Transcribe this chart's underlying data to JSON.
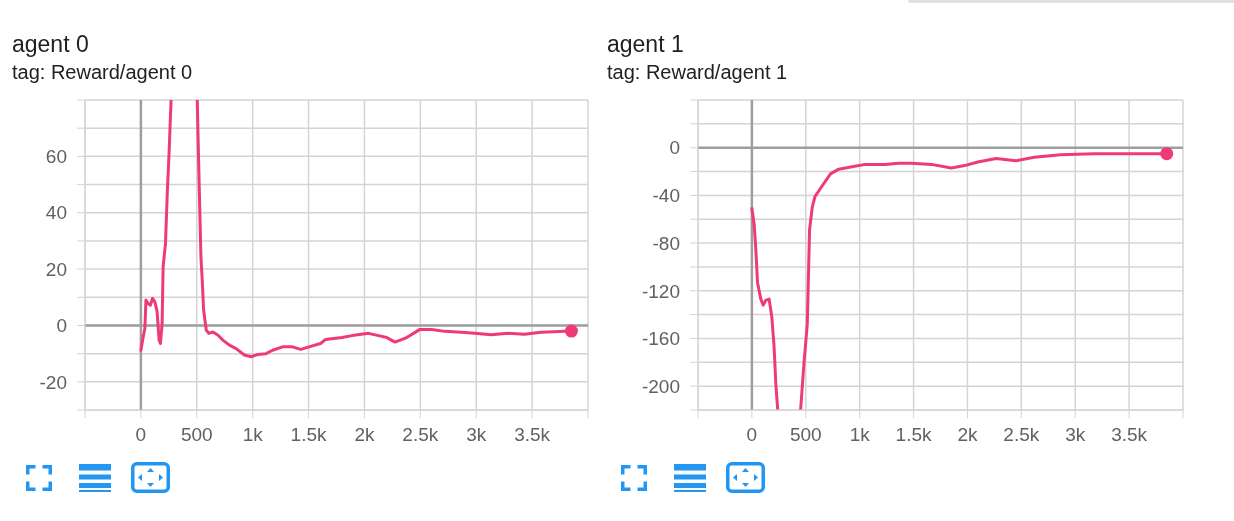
{
  "chart_data": [
    {
      "type": "line",
      "title": "agent 0",
      "subtitle": "tag: Reward/agent 0",
      "series": [
        {
          "type": "line",
          "color": "#ef3a79",
          "x": [
            0,
            21,
            36,
            45,
            65,
            86,
            104,
            125,
            145,
            163,
            175,
            190,
            199,
            220,
            237,
            252,
            270,
            390,
            504,
            519,
            537,
            549,
            561,
            585,
            608,
            644,
            688,
            733,
            792,
            852,
            926,
            985,
            1045,
            1119,
            1178,
            1267,
            1356,
            1430,
            1504,
            1607,
            1651,
            1800,
            1889,
            2037,
            2126,
            2200,
            2274,
            2378,
            2497,
            2600,
            2719,
            2867,
            2986,
            3134,
            3282,
            3431,
            3579,
            3852
          ],
          "values": [
            -8.8,
            -4,
            -1,
            9,
            7.8,
            7.2,
            9.6,
            8.4,
            4.9,
            -5.2,
            -6.4,
            0.7,
            20.9,
            29,
            48,
            61,
            80,
            null,
            80,
            54,
            24.4,
            16,
            5.5,
            -1.7,
            -2.8,
            -2.3,
            -3.4,
            -5.2,
            -7,
            -8.2,
            -10.5,
            -11.1,
            -10.3,
            -10,
            -8.8,
            -7.6,
            -7.6,
            -8.5,
            -7.6,
            -6.4,
            -5,
            -4.3,
            -3.6,
            -2.8,
            -3.6,
            -4.3,
            -5.9,
            -4.3,
            -1.4,
            -1.4,
            -2.1,
            -2.4,
            -2.8,
            -3.3,
            -2.8,
            -3.1,
            -2.4,
            -2
          ]
        },
        {
          "type": "scatter",
          "color": "#ef3a79",
          "x": [
            3852
          ],
          "values": [
            -2
          ]
        }
      ],
      "xlim": [
        -500,
        4000
      ],
      "ylim": [
        -30,
        80
      ],
      "xticks": [
        {
          "value": -500,
          "label": null
        },
        {
          "value": 0,
          "label": "0"
        },
        500,
        {
          "value": 1000,
          "label": "1k"
        },
        {
          "value": 1500,
          "label": "1.5k"
        },
        {
          "value": 2000,
          "label": "2k"
        },
        {
          "value": 2500,
          "label": "2.5k"
        },
        {
          "value": 3000,
          "label": "3k"
        },
        {
          "value": 3500,
          "label": "3.5k"
        },
        {
          "value": 4000,
          "label": null
        }
      ],
      "yticks": [
        {
          "value": -30,
          "label": null
        },
        -20,
        {
          "value": -10,
          "label": null
        },
        {
          "value": 0,
          "label": "0"
        },
        {
          "value": 10,
          "label": null
        },
        20,
        {
          "value": 30,
          "label": null
        },
        40,
        {
          "value": 50,
          "label": null
        },
        60,
        {
          "value": 70,
          "label": null
        },
        {
          "value": 80,
          "label": null
        }
      ],
      "grid": true
    },
    {
      "type": "line",
      "title": "agent 1",
      "subtitle": "tag: Reward/agent 1",
      "series": [
        {
          "type": "line",
          "color": "#ef3a79",
          "x": [
            0,
            21,
            37,
            52,
            83,
            105,
            129,
            160,
            185,
            206,
            222,
            240,
            345,
            452,
            483,
            514,
            535,
            560,
            585,
            637,
            729,
            806,
            929,
            1052,
            1237,
            1360,
            1482,
            1666,
            1850,
            1973,
            2096,
            2265,
            2450,
            2619,
            2865,
            3173,
            3480,
            3849
          ],
          "values": [
            -51,
            -64,
            -86,
            -113,
            -127,
            -132,
            -128,
            -127,
            -142,
            -167,
            -198,
            -220,
            null,
            -220,
            -181,
            -148,
            -69,
            -50,
            -41,
            -34,
            -22,
            -18,
            -16,
            -14,
            -14,
            -13,
            -13,
            -14,
            -17,
            -15,
            -12,
            -9,
            -11,
            -8,
            -6,
            -5,
            -5,
            -5
          ]
        },
        {
          "type": "scatter",
          "color": "#ef3a79",
          "x": [
            3849
          ],
          "values": [
            -5
          ]
        }
      ],
      "xlim": [
        -500,
        4000
      ],
      "ylim": [
        -220,
        40
      ],
      "xticks": [
        {
          "value": -500,
          "label": null
        },
        {
          "value": 0,
          "label": "0"
        },
        500,
        {
          "value": 1000,
          "label": "1k"
        },
        {
          "value": 1500,
          "label": "1.5k"
        },
        {
          "value": 2000,
          "label": "2k"
        },
        {
          "value": 2500,
          "label": "2.5k"
        },
        {
          "value": 3000,
          "label": "3k"
        },
        {
          "value": 3500,
          "label": "3.5k"
        },
        {
          "value": 4000,
          "label": null
        }
      ],
      "yticks": [
        {
          "value": -220,
          "label": null
        },
        -200,
        {
          "value": -180,
          "label": null
        },
        -160,
        {
          "value": -140,
          "label": null
        },
        -120,
        {
          "value": -100,
          "label": null
        },
        -80,
        {
          "value": -60,
          "label": null
        },
        -40,
        {
          "value": -20,
          "label": null
        },
        {
          "value": 0,
          "label": "0"
        },
        {
          "value": 20,
          "label": null
        },
        {
          "value": 40,
          "label": null
        }
      ],
      "grid": true
    }
  ]
}
